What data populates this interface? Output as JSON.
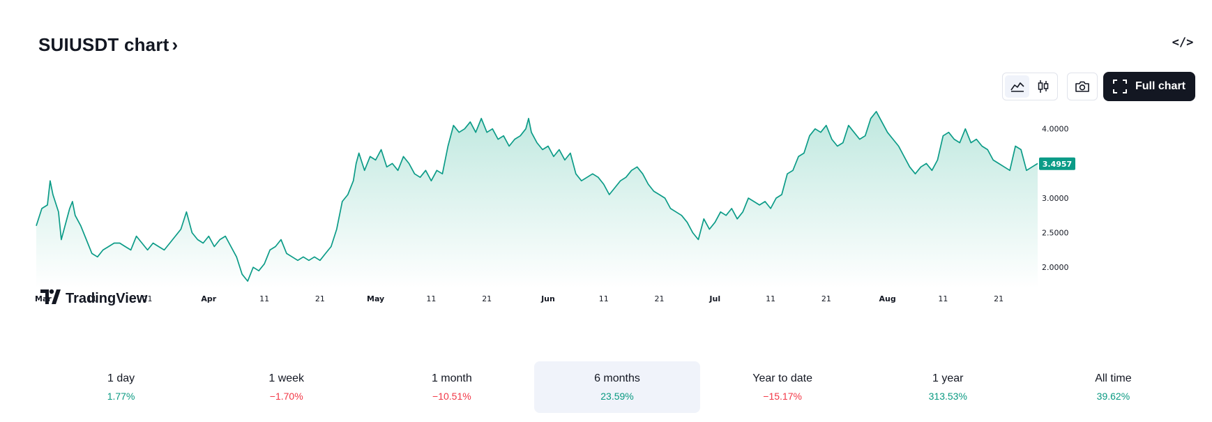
{
  "header": {
    "title": "SUIUSDT chart",
    "chevron": "›",
    "embed_icon": "</>"
  },
  "toolbar": {
    "line_icon": "area-chart-icon",
    "candle_icon": "candlestick-icon",
    "snapshot_icon": "camera-icon",
    "full_chart_label": "Full chart",
    "full_chart_icon": "fullscreen-icon"
  },
  "branding": {
    "logo_text": "TradingView"
  },
  "colors": {
    "line": "#0b9b87",
    "area_top": "#bfe8df",
    "area_bottom": "#ffffff",
    "positive": "#089981",
    "negative": "#f23645",
    "price_badge": "#0b9b87"
  },
  "chart_data": {
    "type": "area",
    "title": "SUIUSDT chart",
    "y_ticks": [
      "4.0000",
      "3.5000",
      "3.0000",
      "2.5000",
      "2.0000"
    ],
    "y_tick_values": [
      4.0,
      3.5,
      3.0,
      2.5,
      2.0
    ],
    "ylim": [
      1.7,
      4.35
    ],
    "x_ticks": [
      {
        "label": "Mar",
        "day": 0,
        "bold": true
      },
      {
        "label": "11",
        "day": 10,
        "bold": false
      },
      {
        "label": "21",
        "day": 20,
        "bold": false
      },
      {
        "label": "Apr",
        "day": 31,
        "bold": true
      },
      {
        "label": "11",
        "day": 41,
        "bold": false
      },
      {
        "label": "21",
        "day": 51,
        "bold": false
      },
      {
        "label": "May",
        "day": 61,
        "bold": true
      },
      {
        "label": "11",
        "day": 71,
        "bold": false
      },
      {
        "label": "21",
        "day": 81,
        "bold": false
      },
      {
        "label": "Jun",
        "day": 92,
        "bold": true
      },
      {
        "label": "11",
        "day": 102,
        "bold": false
      },
      {
        "label": "21",
        "day": 112,
        "bold": false
      },
      {
        "label": "Jul",
        "day": 122,
        "bold": true
      },
      {
        "label": "11",
        "day": 132,
        "bold": false
      },
      {
        "label": "21",
        "day": 142,
        "bold": false
      },
      {
        "label": "Aug",
        "day": 153,
        "bold": true
      },
      {
        "label": "11",
        "day": 163,
        "bold": false
      },
      {
        "label": "21",
        "day": 173,
        "bold": false
      }
    ],
    "xlim": [
      0,
      180
    ],
    "last_price": "3.4957",
    "last_price_value": 3.4957,
    "series": [
      {
        "points": [
          [
            0,
            2.6
          ],
          [
            1,
            2.85
          ],
          [
            2,
            2.9
          ],
          [
            2.5,
            3.25
          ],
          [
            3,
            3.05
          ],
          [
            4,
            2.8
          ],
          [
            4.5,
            2.4
          ],
          [
            5,
            2.55
          ],
          [
            6,
            2.85
          ],
          [
            6.5,
            2.95
          ],
          [
            7,
            2.75
          ],
          [
            8,
            2.6
          ],
          [
            9,
            2.4
          ],
          [
            10,
            2.2
          ],
          [
            11,
            2.15
          ],
          [
            12,
            2.25
          ],
          [
            13,
            2.3
          ],
          [
            14,
            2.35
          ],
          [
            15,
            2.35
          ],
          [
            16,
            2.3
          ],
          [
            17,
            2.25
          ],
          [
            18,
            2.45
          ],
          [
            19,
            2.35
          ],
          [
            20,
            2.25
          ],
          [
            21,
            2.35
          ],
          [
            22,
            2.3
          ],
          [
            23,
            2.25
          ],
          [
            24,
            2.35
          ],
          [
            25,
            2.45
          ],
          [
            26,
            2.55
          ],
          [
            27,
            2.8
          ],
          [
            28,
            2.5
          ],
          [
            29,
            2.4
          ],
          [
            30,
            2.35
          ],
          [
            31,
            2.45
          ],
          [
            32,
            2.3
          ],
          [
            33,
            2.4
          ],
          [
            34,
            2.45
          ],
          [
            35,
            2.3
          ],
          [
            36,
            2.15
          ],
          [
            37,
            1.9
          ],
          [
            38,
            1.8
          ],
          [
            39,
            2.0
          ],
          [
            40,
            1.95
          ],
          [
            41,
            2.05
          ],
          [
            42,
            2.25
          ],
          [
            43,
            2.3
          ],
          [
            44,
            2.4
          ],
          [
            45,
            2.2
          ],
          [
            46,
            2.15
          ],
          [
            47,
            2.1
          ],
          [
            48,
            2.15
          ],
          [
            49,
            2.1
          ],
          [
            50,
            2.15
          ],
          [
            51,
            2.1
          ],
          [
            52,
            2.2
          ],
          [
            53,
            2.3
          ],
          [
            54,
            2.55
          ],
          [
            55,
            2.95
          ],
          [
            56,
            3.05
          ],
          [
            57,
            3.25
          ],
          [
            57.5,
            3.5
          ],
          [
            58,
            3.65
          ],
          [
            59,
            3.4
          ],
          [
            60,
            3.6
          ],
          [
            61,
            3.55
          ],
          [
            62,
            3.7
          ],
          [
            63,
            3.45
          ],
          [
            64,
            3.5
          ],
          [
            65,
            3.4
          ],
          [
            66,
            3.6
          ],
          [
            67,
            3.5
          ],
          [
            68,
            3.35
          ],
          [
            69,
            3.3
          ],
          [
            70,
            3.4
          ],
          [
            71,
            3.25
          ],
          [
            72,
            3.4
          ],
          [
            73,
            3.35
          ],
          [
            74,
            3.75
          ],
          [
            75,
            4.05
          ],
          [
            76,
            3.95
          ],
          [
            77,
            4.0
          ],
          [
            78,
            4.1
          ],
          [
            79,
            3.95
          ],
          [
            80,
            4.15
          ],
          [
            81,
            3.95
          ],
          [
            82,
            4.0
          ],
          [
            83,
            3.85
          ],
          [
            84,
            3.9
          ],
          [
            85,
            3.75
          ],
          [
            86,
            3.85
          ],
          [
            87,
            3.9
          ],
          [
            88,
            4.0
          ],
          [
            88.5,
            4.15
          ],
          [
            89,
            3.95
          ],
          [
            90,
            3.8
          ],
          [
            91,
            3.7
          ],
          [
            92,
            3.75
          ],
          [
            93,
            3.6
          ],
          [
            94,
            3.7
          ],
          [
            95,
            3.55
          ],
          [
            96,
            3.65
          ],
          [
            97,
            3.35
          ],
          [
            98,
            3.25
          ],
          [
            99,
            3.3
          ],
          [
            100,
            3.35
          ],
          [
            101,
            3.3
          ],
          [
            102,
            3.2
          ],
          [
            103,
            3.05
          ],
          [
            104,
            3.15
          ],
          [
            105,
            3.25
          ],
          [
            106,
            3.3
          ],
          [
            107,
            3.4
          ],
          [
            108,
            3.45
          ],
          [
            109,
            3.35
          ],
          [
            110,
            3.2
          ],
          [
            111,
            3.1
          ],
          [
            112,
            3.05
          ],
          [
            113,
            3.0
          ],
          [
            114,
            2.85
          ],
          [
            115,
            2.8
          ],
          [
            116,
            2.75
          ],
          [
            117,
            2.65
          ],
          [
            118,
            2.5
          ],
          [
            119,
            2.4
          ],
          [
            120,
            2.7
          ],
          [
            121,
            2.55
          ],
          [
            122,
            2.65
          ],
          [
            123,
            2.8
          ],
          [
            124,
            2.75
          ],
          [
            125,
            2.85
          ],
          [
            126,
            2.7
          ],
          [
            127,
            2.8
          ],
          [
            128,
            3.0
          ],
          [
            129,
            2.95
          ],
          [
            130,
            2.9
          ],
          [
            131,
            2.95
          ],
          [
            132,
            2.85
          ],
          [
            133,
            3.0
          ],
          [
            134,
            3.05
          ],
          [
            135,
            3.35
          ],
          [
            136,
            3.4
          ],
          [
            137,
            3.6
          ],
          [
            138,
            3.65
          ],
          [
            139,
            3.9
          ],
          [
            140,
            4.0
          ],
          [
            141,
            3.95
          ],
          [
            142,
            4.05
          ],
          [
            143,
            3.85
          ],
          [
            144,
            3.75
          ],
          [
            145,
            3.8
          ],
          [
            146,
            4.05
          ],
          [
            147,
            3.95
          ],
          [
            148,
            3.85
          ],
          [
            149,
            3.9
          ],
          [
            150,
            4.15
          ],
          [
            151,
            4.25
          ],
          [
            152,
            4.1
          ],
          [
            153,
            3.95
          ],
          [
            154,
            3.85
          ],
          [
            155,
            3.75
          ],
          [
            156,
            3.6
          ],
          [
            157,
            3.45
          ],
          [
            158,
            3.35
          ],
          [
            159,
            3.45
          ],
          [
            160,
            3.5
          ],
          [
            161,
            3.4
          ],
          [
            162,
            3.55
          ],
          [
            163,
            3.9
          ],
          [
            164,
            3.95
          ],
          [
            165,
            3.85
          ],
          [
            166,
            3.8
          ],
          [
            167,
            4.0
          ],
          [
            168,
            3.8
          ],
          [
            169,
            3.85
          ],
          [
            170,
            3.75
          ],
          [
            171,
            3.7
          ],
          [
            172,
            3.55
          ],
          [
            173,
            3.5
          ],
          [
            174,
            3.45
          ],
          [
            175,
            3.4
          ],
          [
            176,
            3.75
          ],
          [
            177,
            3.7
          ],
          [
            178,
            3.4
          ],
          [
            179,
            3.45
          ],
          [
            180,
            3.5
          ]
        ]
      }
    ]
  },
  "periods": [
    {
      "label": "1 day",
      "change": "1.77%",
      "sign": "pos",
      "active": false
    },
    {
      "label": "1 week",
      "change": "−1.70%",
      "sign": "neg",
      "active": false
    },
    {
      "label": "1 month",
      "change": "−10.51%",
      "sign": "neg",
      "active": false
    },
    {
      "label": "6 months",
      "change": "23.59%",
      "sign": "pos",
      "active": true
    },
    {
      "label": "Year to date",
      "change": "−15.17%",
      "sign": "neg",
      "active": false
    },
    {
      "label": "1 year",
      "change": "313.53%",
      "sign": "pos",
      "active": false
    },
    {
      "label": "All time",
      "change": "39.62%",
      "sign": "pos",
      "active": false
    }
  ]
}
